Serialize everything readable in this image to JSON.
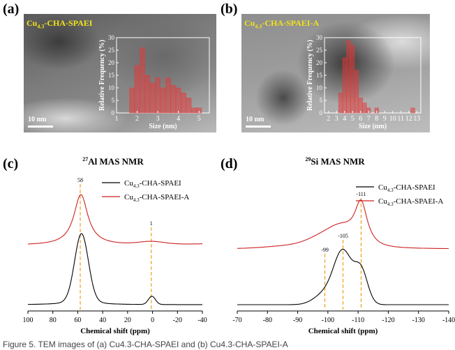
{
  "panels": {
    "a": {
      "letter": "(a)",
      "sample_label": "Cu4.3-CHA-SPAEI",
      "label_main": "Cu",
      "label_sub": "4.3",
      "label_tail": "-CHA-SPAEI",
      "scale_bar": "10 nm"
    },
    "b": {
      "letter": "(b)",
      "sample_label": "Cu4.3-CHA-SPAEI-A",
      "label_main": "Cu",
      "label_sub": "4.3",
      "label_tail": "-CHA-SPAEI-A",
      "scale_bar": "10 nm"
    },
    "c": {
      "letter": "(c)"
    },
    "d": {
      "letter": "(d)"
    }
  },
  "caption": "Figure 5. TEM images of (a) Cu4.3-CHA-SPAEI and (b) Cu4.3-CHA-SPAEI-A",
  "colors": {
    "histogram": "#e23a3a",
    "nmr_plain": "#000000",
    "nmr_acid": "#cc2222",
    "guide": "#f0a020",
    "label_yellow": "#f2e21a"
  },
  "chart_data": [
    {
      "type": "bar",
      "panel": "a",
      "xlabel": "Size (nm)",
      "ylabel": "Relative Frequency (%)",
      "xlim": [
        1,
        5.5
      ],
      "ylim": [
        0,
        30
      ],
      "xticks": [
        "1",
        "2",
        "3",
        "4",
        "5"
      ],
      "yticks": [
        "0",
        "5",
        "10",
        "15",
        "20",
        "25",
        "30"
      ],
      "bin_width": 0.25,
      "x": [
        1.75,
        2.0,
        2.25,
        2.5,
        2.75,
        3.0,
        3.25,
        3.5,
        3.75,
        4.0,
        4.25,
        4.5,
        4.75,
        5.0
      ],
      "values": [
        10,
        19,
        26,
        15,
        12,
        14,
        10,
        14,
        11,
        10,
        8,
        6,
        2,
        2
      ]
    },
    {
      "type": "bar",
      "panel": "b",
      "xlabel": "Size (nm)",
      "ylabel": "Relative Frequency (%)",
      "xlim": [
        1.5,
        13.5
      ],
      "ylim": [
        0,
        30
      ],
      "xticks": [
        "2",
        "3",
        "4",
        "5",
        "6",
        "7",
        "8",
        "9",
        "10",
        "11",
        "12",
        "13"
      ],
      "yticks": [
        "0",
        "5",
        "10",
        "15",
        "20",
        "25",
        "30"
      ],
      "bin_width": 0.5,
      "x": [
        3.5,
        4.0,
        4.5,
        5.0,
        5.5,
        6.0,
        6.5,
        7.0,
        8.0,
        12.5
      ],
      "values": [
        8,
        22,
        29,
        27,
        17,
        6,
        4,
        2,
        2,
        2
      ]
    },
    {
      "type": "line",
      "panel": "c",
      "title": "27Al MAS NMR",
      "title_sup": "27",
      "title_main": "Al MAS NMR",
      "xlabel": "Chemical shift (ppm)",
      "xlim": [
        100,
        -40
      ],
      "xticks": [
        "100",
        "80",
        "60",
        "40",
        "20",
        "0",
        "-20",
        "-40"
      ],
      "annotations": [
        "58",
        "1"
      ],
      "peaks": [
        58,
        1
      ],
      "series": [
        {
          "name": "Cu4.3-CHA-SPAEI",
          "name_main": "Cu",
          "name_sub": "4.3",
          "name_tail": "-CHA-SPAEI"
        },
        {
          "name": "Cu4.3-CHA-SPAEI-A",
          "name_main": "Cu",
          "name_sub": "4.3",
          "name_tail": "-CHA-SPAEI-A"
        }
      ]
    },
    {
      "type": "line",
      "panel": "d",
      "title": "29Si MAS NMR",
      "title_sup": "29",
      "title_main": "Si MAS NMR",
      "xlabel": "Chemical shift (ppm)",
      "xlim": [
        -70,
        -140
      ],
      "xticks": [
        "-70",
        "-80",
        "-90",
        "-100",
        "-110",
        "-120",
        "-130",
        "-140"
      ],
      "annotations": [
        "-99",
        "-105",
        "-111"
      ],
      "peaks": [
        -99,
        -105,
        -111
      ],
      "series": [
        {
          "name": "Cu4.3-CHA-SPAEI",
          "name_main": "Cu",
          "name_sub": "4.3",
          "name_tail": "-CHA-SPAEI"
        },
        {
          "name": "Cu4.3-CHA-SPAEI-A",
          "name_main": "Cu",
          "name_sub": "4.3",
          "name_tail": "-CHA-SPAEI-A"
        }
      ]
    }
  ]
}
